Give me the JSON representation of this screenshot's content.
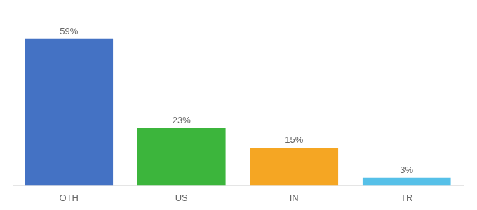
{
  "chart_data": {
    "type": "bar",
    "categories": [
      "OTH",
      "US",
      "IN",
      "TR"
    ],
    "values": [
      59,
      23,
      15,
      3
    ],
    "colors": [
      "#4472C4",
      "#3CB53C",
      "#F5A623",
      "#56C0E8"
    ],
    "data_labels": true,
    "value_labels": [
      "59%",
      "23%",
      "15%",
      "3%"
    ],
    "ylim": [
      0,
      68
    ],
    "grid": false,
    "tick_labels": "x"
  }
}
